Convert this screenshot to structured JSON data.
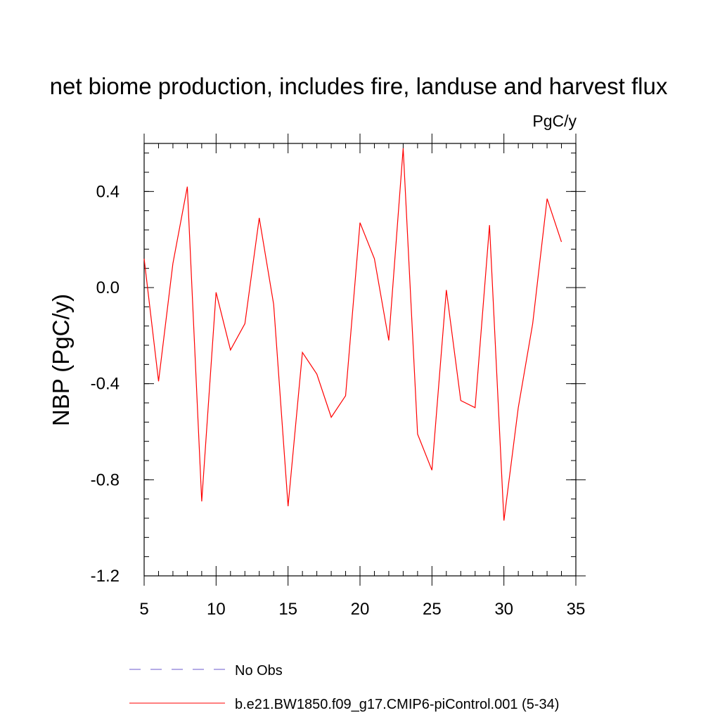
{
  "chart_data": {
    "type": "line",
    "title": "net biome production, includes fire, landuse and harvest flux",
    "units_label": "PgC/y",
    "ylabel": "NBP  (PgC/y)",
    "xlabel": "",
    "xlim": [
      5,
      35
    ],
    "ylim": [
      -1.2,
      0.6
    ],
    "x_ticks": [
      5,
      10,
      15,
      20,
      25,
      30,
      35
    ],
    "y_ticks": [
      -1.2,
      -0.8,
      -0.4,
      0.0,
      0.4
    ],
    "y_tick_labels": [
      "-1.2",
      "-0.8",
      "-0.4",
      "0.0",
      "0.4"
    ],
    "grid": false,
    "legend_position": "bottom",
    "legend": [
      {
        "label": "No Obs",
        "color": "#6a5acd",
        "dash": true
      },
      {
        "label": "b.e21.BW1850.f09_g17.CMIP6-piControl.001 (5-34)",
        "color": "#ff0000",
        "dash": false
      }
    ],
    "series": [
      {
        "name": "b.e21.BW1850.f09_g17.CMIP6-piControl.001 (5-34)",
        "color": "#ff0000",
        "x": [
          5,
          6,
          7,
          8,
          9,
          10,
          11,
          12,
          13,
          14,
          15,
          16,
          17,
          18,
          19,
          20,
          21,
          22,
          23,
          24,
          25,
          26,
          27,
          28,
          29,
          30,
          31,
          32,
          33,
          34
        ],
        "y": [
          0.12,
          -0.39,
          0.1,
          0.42,
          -0.89,
          -0.02,
          -0.26,
          -0.15,
          0.29,
          -0.07,
          -0.91,
          -0.27,
          -0.36,
          -0.54,
          -0.45,
          0.27,
          0.12,
          -0.22,
          0.58,
          -0.61,
          -0.76,
          -0.01,
          -0.47,
          -0.5,
          0.26,
          -0.97,
          -0.5,
          -0.15,
          0.37,
          0.19
        ]
      }
    ]
  }
}
